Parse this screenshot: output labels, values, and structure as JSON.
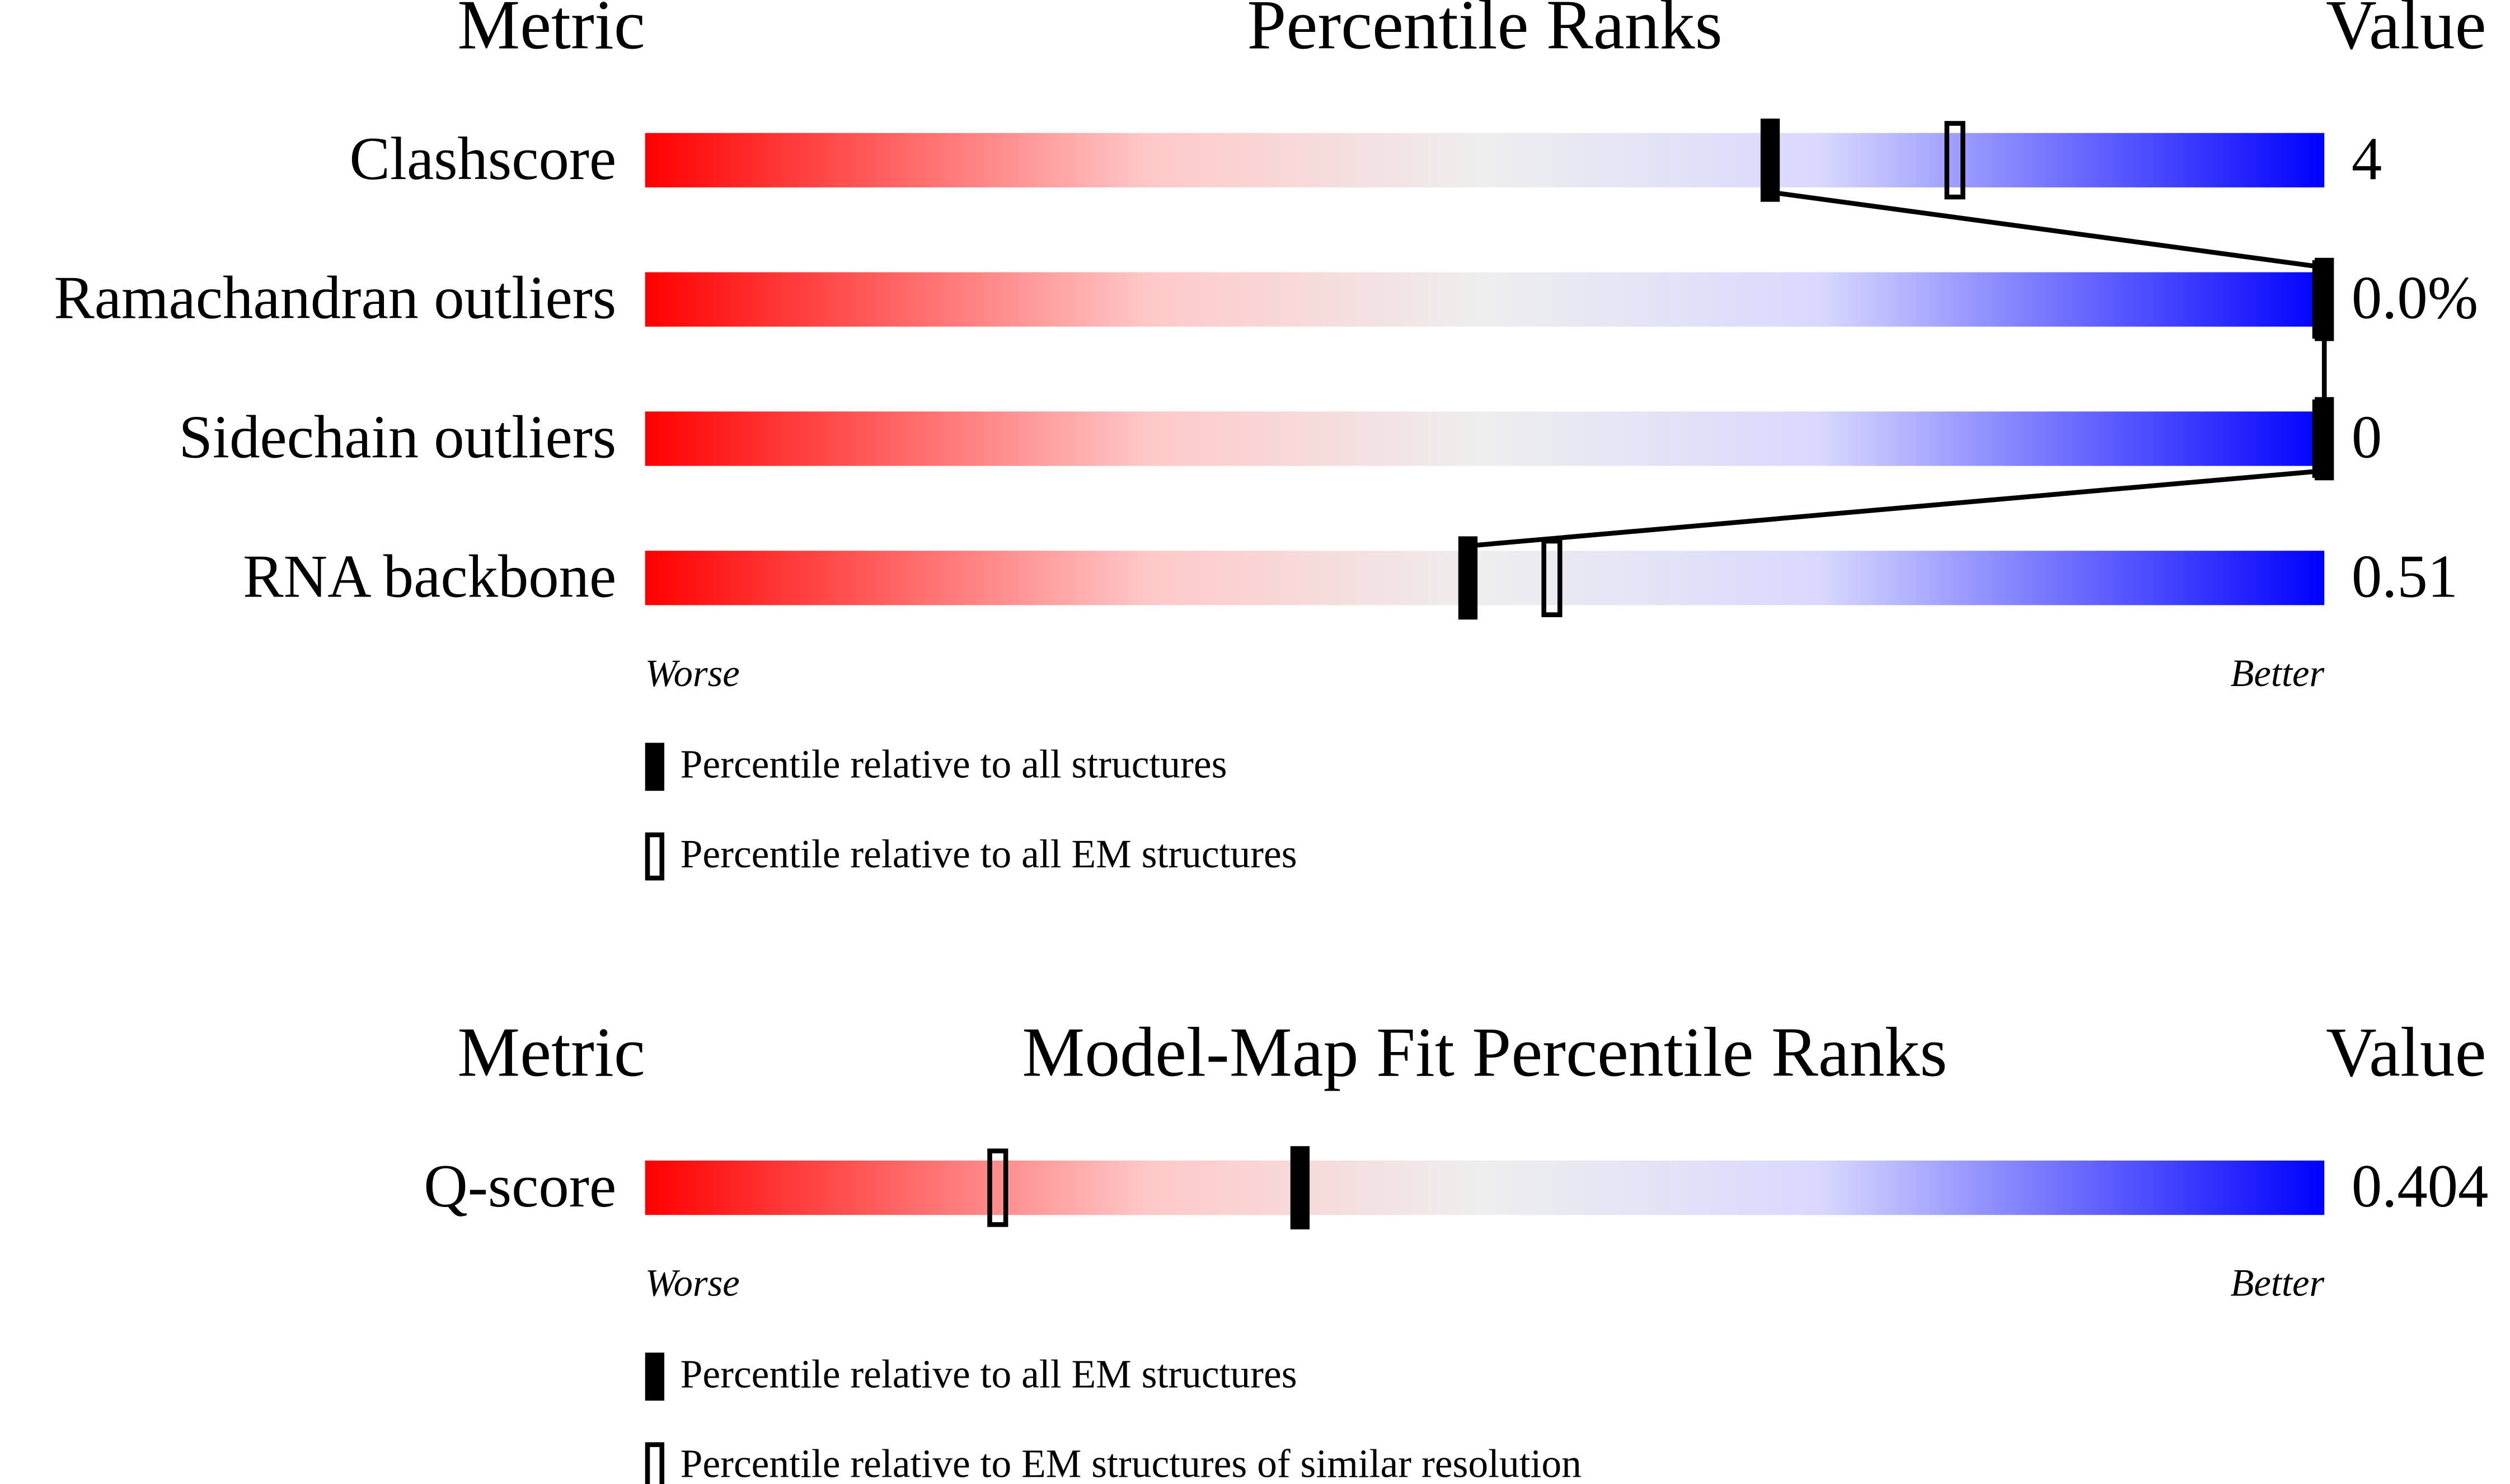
{
  "chart_data": [
    {
      "type": "percentile",
      "metric_header": "Metric",
      "title": "Percentile Ranks",
      "value_header": "Value",
      "categories": [
        "Clashscore",
        "Ramachandran outliers",
        "Sidechain outliers",
        "RNA backbone"
      ],
      "metric_values": [
        "4",
        "0.0%",
        "0",
        "0.51"
      ],
      "xlim": [
        0,
        100
      ],
      "x_start_label": "Worse",
      "x_end_label": "Better",
      "series": [
        {
          "name": "Percentile relative to all structures",
          "color": "#000000",
          "style": "solid",
          "values": [
            67,
            100,
            100,
            49
          ]
        },
        {
          "name": "Percentile relative to all EM structures",
          "color": "#000000",
          "style": "hollow",
          "values": [
            78,
            100,
            100,
            54
          ]
        }
      ]
    },
    {
      "type": "percentile",
      "metric_header": "Metric",
      "title": "Model-Map Fit Percentile Ranks",
      "value_header": "Value",
      "categories": [
        "Q-score"
      ],
      "metric_values": [
        "0.404"
      ],
      "xlim": [
        0,
        100
      ],
      "x_start_label": "Worse",
      "x_end_label": "Better",
      "series": [
        {
          "name": "Percentile relative to all EM structures",
          "color": "#000000",
          "style": "solid",
          "values": [
            39
          ]
        },
        {
          "name": "Percentile relative to EM structures of similar resolution",
          "color": "#000000",
          "style": "hollow",
          "values": [
            21
          ]
        }
      ]
    }
  ]
}
